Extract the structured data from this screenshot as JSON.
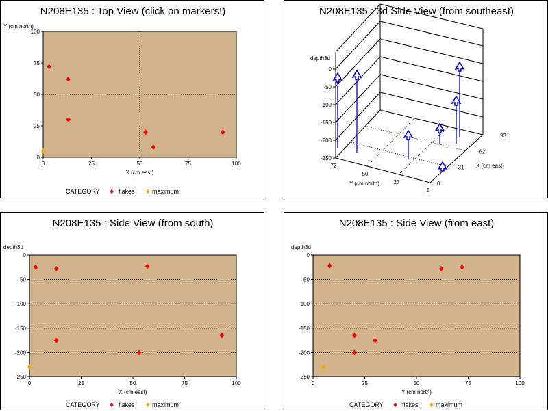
{
  "colors": {
    "plot_bg": "#d2b48c",
    "flakes": "#ff0000",
    "maximum": "#ffa500",
    "arrow": "#0000cc"
  },
  "legend": {
    "label": "CATEGORY",
    "items": [
      "flakes",
      "maximum"
    ]
  },
  "chart_data": [
    {
      "id": "top",
      "type": "scatter",
      "title": "N208E135 : Top View (click on markers!)",
      "xlabel": "X (cm east)",
      "ylabel": "Y (cm north)",
      "xlim": [
        0,
        100
      ],
      "ylim": [
        0,
        100
      ],
      "xticks": [
        "0",
        "25",
        "50",
        "75",
        "100"
      ],
      "yticks": [
        "0",
        "25",
        "50",
        "75",
        "100"
      ],
      "ref_x": 50,
      "ref_y": 50,
      "series": [
        {
          "name": "flakes",
          "points": [
            [
              3,
              72
            ],
            [
              13,
              62
            ],
            [
              13,
              30
            ],
            [
              53,
              20
            ],
            [
              57,
              8
            ],
            [
              93,
              20
            ]
          ]
        },
        {
          "name": "maximum",
          "points": [
            [
              0,
              5
            ]
          ]
        }
      ]
    },
    {
      "id": "d3",
      "type": "scatter",
      "title": "N208E135 : 3d Side View (from southeast)",
      "zlabel": "depth3d",
      "xlabel": "X (cm east)",
      "ylabel": "Y (cm north)",
      "zticks": [
        "0",
        "-50",
        "-100",
        "-150",
        "-200",
        "-250"
      ],
      "xticks": [
        "0",
        "31",
        "62",
        "93"
      ],
      "yticks": [
        "72",
        "50",
        "27",
        "5"
      ]
    },
    {
      "id": "south",
      "type": "scatter",
      "title": "N208E135 : Side View (from south)",
      "xlabel": "X (cm east)",
      "ylabel": "depth3d",
      "xlim": [
        0,
        100
      ],
      "ylim": [
        -250,
        0
      ],
      "xticks": [
        "0",
        "25",
        "50",
        "75",
        "100"
      ],
      "yticks": [
        "0",
        "-50",
        "-100",
        "-150",
        "-200",
        "-250"
      ],
      "series": [
        {
          "name": "flakes",
          "points": [
            [
              3,
              -25
            ],
            [
              13,
              -28
            ],
            [
              57,
              -23
            ],
            [
              13,
              -175
            ],
            [
              53,
              -200
            ],
            [
              93,
              -165
            ]
          ]
        },
        {
          "name": "maximum",
          "points": [
            [
              0,
              -230
            ]
          ]
        }
      ]
    },
    {
      "id": "east",
      "type": "scatter",
      "title": "N208E135 : Side View (from east)",
      "xlabel": "Y (cm north)",
      "ylabel": "depth3d",
      "xlim": [
        0,
        100
      ],
      "ylim": [
        -250,
        0
      ],
      "xticks": [
        "0",
        "25",
        "50",
        "75",
        "100"
      ],
      "yticks": [
        "0",
        "-50",
        "-100",
        "-150",
        "-200",
        "-250"
      ],
      "series": [
        {
          "name": "flakes",
          "points": [
            [
              8,
              -22
            ],
            [
              62,
              -28
            ],
            [
              72,
              -25
            ],
            [
              20,
              -165
            ],
            [
              20,
              -200
            ],
            [
              30,
              -175
            ]
          ]
        },
        {
          "name": "maximum",
          "points": [
            [
              5,
              -230
            ]
          ]
        }
      ]
    }
  ]
}
